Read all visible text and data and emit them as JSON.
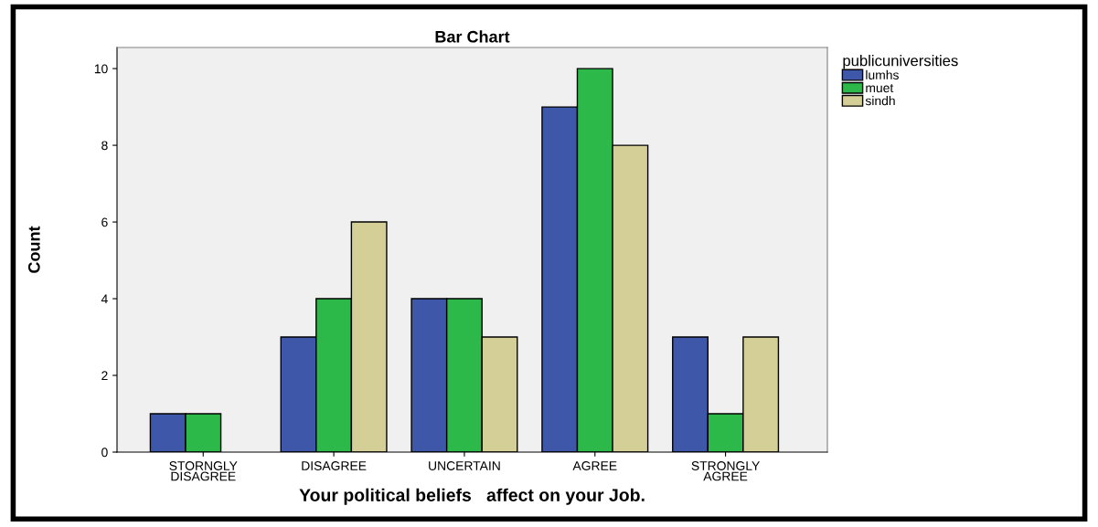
{
  "chart_data": {
    "type": "bar",
    "title": "Bar Chart",
    "xlabel": "Your political beliefs   affect on your Job.",
    "ylabel": "Count",
    "legend_title": "publicuniversities",
    "categories": [
      "STORNGLY\nDISAGREE",
      "DISAGREE",
      "UNCERTAIN",
      "AGREE",
      "STRONGLY\nAGREE"
    ],
    "series": [
      {
        "name": "lumhs",
        "color": "#3f57a8",
        "values": [
          1,
          3,
          4,
          9,
          3
        ]
      },
      {
        "name": "muet",
        "color": "#2db84a",
        "values": [
          1,
          4,
          4,
          10,
          1
        ]
      },
      {
        "name": "sindh",
        "color": "#d4cf96",
        "values": [
          null,
          6,
          3,
          8,
          3
        ]
      }
    ],
    "ylim": [
      0,
      10.55
    ],
    "yticks": [
      0,
      2,
      4,
      6,
      8,
      10
    ],
    "grid": false,
    "legend": "top right"
  }
}
